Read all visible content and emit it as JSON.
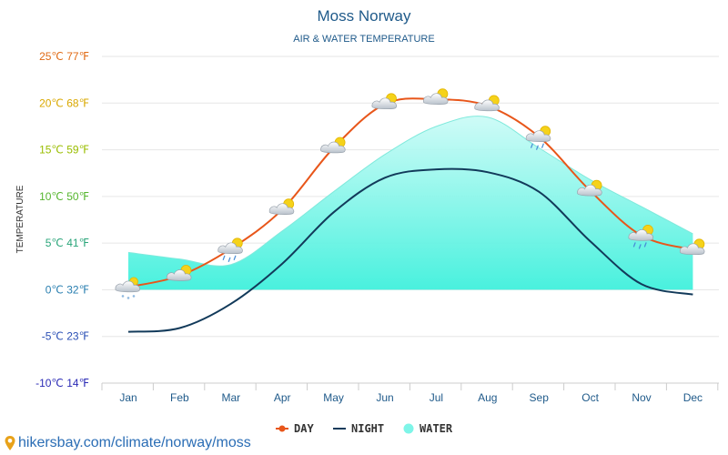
{
  "chart_data": {
    "type": "line",
    "title": "Moss Norway",
    "subtitle": "AIR & WATER TEMPERATURE",
    "ylabel": "TEMPERATURE",
    "ylim": [
      -10,
      25
    ],
    "yticks": [
      {
        "value": 25,
        "label": "25℃ 77℉",
        "color": "#e06a14"
      },
      {
        "value": 20,
        "label": "20℃ 68℉",
        "color": "#d9a800"
      },
      {
        "value": 15,
        "label": "15℃ 59℉",
        "color": "#9abd00"
      },
      {
        "value": 10,
        "label": "10℃ 50℉",
        "color": "#55b52e"
      },
      {
        "value": 5,
        "label": "5℃ 41℉",
        "color": "#2aa57a"
      },
      {
        "value": 0,
        "label": "0℃ 32℉",
        "color": "#2a7fb0"
      },
      {
        "value": -5,
        "label": "-5℃ 23℉",
        "color": "#2a4fb5"
      },
      {
        "value": -10,
        "label": "-10℃ 14℉",
        "color": "#2a2ab5"
      }
    ],
    "categories": [
      "Jan",
      "Feb",
      "Mar",
      "Apr",
      "May",
      "Jun",
      "Jul",
      "Aug",
      "Sep",
      "Oct",
      "Nov",
      "Dec"
    ],
    "series": [
      {
        "name": "DAY",
        "color": "#e8561a",
        "values": [
          0.3,
          1.5,
          4.4,
          8.6,
          15.2,
          19.9,
          20.4,
          19.7,
          16.4,
          10.6,
          5.8,
          4.3
        ]
      },
      {
        "name": "NIGHT",
        "color": "#123a5a",
        "values": [
          -4.5,
          -4.1,
          -1.5,
          2.8,
          8.3,
          12.0,
          12.9,
          12.6,
          10.5,
          5.2,
          0.6,
          -0.5
        ]
      },
      {
        "name": "WATER",
        "color": "#7ef5e8",
        "values": [
          4.0,
          3.3,
          2.7,
          6.3,
          10.5,
          14.5,
          17.5,
          18.5,
          15.2,
          11.8,
          8.9,
          6.0
        ]
      }
    ],
    "weather_icons": [
      "snow",
      "cloud-sun",
      "rain-sun",
      "cloud-sun",
      "cloud-sun",
      "cloud-sun",
      "cloud-sun",
      "cloud-sun",
      "rain-sun",
      "cloud-sun",
      "rain-sun",
      "cloud-sun"
    ],
    "legend": [
      {
        "label": "DAY",
        "marker": "line-dot",
        "color": "#e8561a"
      },
      {
        "label": "NIGHT",
        "marker": "line",
        "color": "#123a5a"
      },
      {
        "label": "WATER",
        "marker": "dot",
        "color": "#7ef5e8"
      }
    ]
  },
  "footer": {
    "url": "hikersbay.com/climate/norway/moss",
    "icon": "location-pin-icon"
  }
}
